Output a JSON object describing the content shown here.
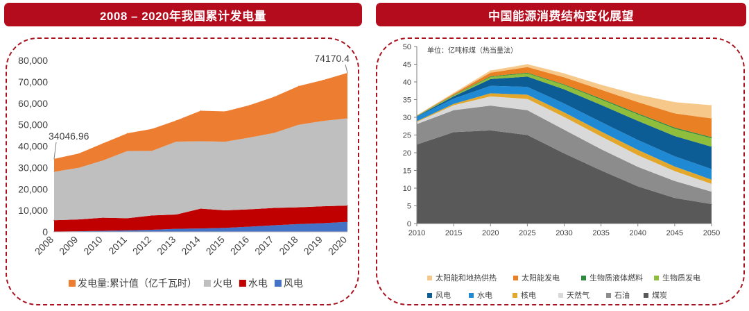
{
  "left_panel": {
    "title": "2008 – 2020年我国累计发电量"
  },
  "right_panel": {
    "title": "中国能源消费结构变化展望",
    "unit_note": "单位：亿吨标煤（热当量法）"
  },
  "colors": {
    "banner": "#b40b1d",
    "frame": "#a8121f"
  },
  "chart_data": [
    {
      "type": "area",
      "stacked": true,
      "categories": [
        "2008",
        "2009",
        "2010",
        "2011",
        "2012",
        "2013",
        "2014",
        "2015",
        "2016",
        "2017",
        "2018",
        "2019",
        "2020"
      ],
      "ylim": [
        0,
        80000
      ],
      "yticks": [
        "0",
        "10,000",
        "20,000",
        "30,000",
        "40,000",
        "50,000",
        "60,000",
        "70,000",
        "80,000"
      ],
      "series": [
        {
          "name": "风电",
          "color": "#4472c4",
          "values": [
            130,
            280,
            500,
            740,
            960,
            1400,
            1560,
            1860,
            2410,
            3060,
            3660,
            4060,
            4665
          ]
        },
        {
          "name": "水电",
          "color": "#c00000",
          "values": [
            5300,
            5500,
            6100,
            5600,
            6700,
            6700,
            9300,
            8200,
            8100,
            8100,
            7800,
            7900,
            7600
          ]
        },
        {
          "name": "火电",
          "color": "#bfbfbf",
          "values": [
            22600,
            24100,
            26700,
            31400,
            30100,
            34000,
            31400,
            32000,
            33500,
            35000,
            38500,
            39800,
            40700
          ]
        },
        {
          "name": "发电量:累计值（亿千瓦时）",
          "color": "#ed7d31",
          "values": [
            6016.96,
            6620,
            8000,
            8260,
            10240,
            9900,
            14240,
            14140,
            15090,
            16840,
            18040,
            19040,
            21205.4
          ]
        }
      ],
      "data_labels": [
        {
          "text": "34046.96",
          "index": 0
        },
        {
          "text": "74170.4",
          "index": 12
        }
      ],
      "grid": false,
      "legend_position": "bottom"
    },
    {
      "type": "area",
      "stacked": true,
      "x": [
        2010,
        2015,
        2020,
        2025,
        2030,
        2035,
        2040,
        2045,
        2050
      ],
      "ylim": [
        0,
        50
      ],
      "yticks": [
        0,
        5,
        10,
        15,
        20,
        25,
        30,
        35,
        40,
        45,
        50
      ],
      "series": [
        {
          "name": "煤炭",
          "color": "#595959",
          "values": [
            22.3,
            25.8,
            26.3,
            25.0,
            19.8,
            15.0,
            10.5,
            7.2,
            5.5
          ]
        },
        {
          "name": "石油",
          "color": "#8c8c8c",
          "values": [
            5.8,
            6.2,
            7.0,
            7.0,
            6.7,
            6.0,
            5.5,
            4.8,
            3.5
          ]
        },
        {
          "name": "天然气",
          "color": "#d9d9d9",
          "values": [
            0.6,
            1.4,
            2.6,
            3.2,
            3.6,
            3.6,
            3.3,
            2.8,
            2.2
          ]
        },
        {
          "name": "核电",
          "color": "#e3a82b",
          "values": [
            0.2,
            0.4,
            0.9,
            1.2,
            1.3,
            1.4,
            1.5,
            1.3,
            1.2
          ]
        },
        {
          "name": "水电",
          "color": "#1f8ad3",
          "values": [
            1.3,
            1.5,
            2.1,
            2.2,
            2.5,
            2.7,
            2.8,
            2.9,
            3.0
          ]
        },
        {
          "name": "风电",
          "color": "#0c5c95",
          "values": [
            0.1,
            0.6,
            1.9,
            2.9,
            4.0,
            4.8,
            5.4,
            5.7,
            6.3
          ]
        },
        {
          "name": "生物质发电",
          "color": "#8fbe3c",
          "values": [
            0.1,
            0.3,
            0.6,
            0.9,
            1.2,
            1.5,
            1.8,
            2.1,
            2.4
          ]
        },
        {
          "name": "生物质液体燃料",
          "color": "#2e8b3f",
          "values": [
            0.05,
            0.1,
            0.2,
            0.2,
            0.2,
            0.3,
            0.3,
            0.3,
            0.3
          ]
        },
        {
          "name": "太阳能发电",
          "color": "#ea8024",
          "values": [
            0.05,
            0.3,
            1.0,
            1.6,
            2.0,
            2.5,
            3.2,
            4.0,
            5.3
          ]
        },
        {
          "name": "太阳能和地热供热",
          "color": "#f6c98b",
          "values": [
            0.1,
            0.3,
            0.6,
            0.8,
            1.1,
            1.4,
            2.1,
            3.2,
            3.7
          ]
        }
      ],
      "grid": false,
      "legend_position": "bottom"
    }
  ]
}
